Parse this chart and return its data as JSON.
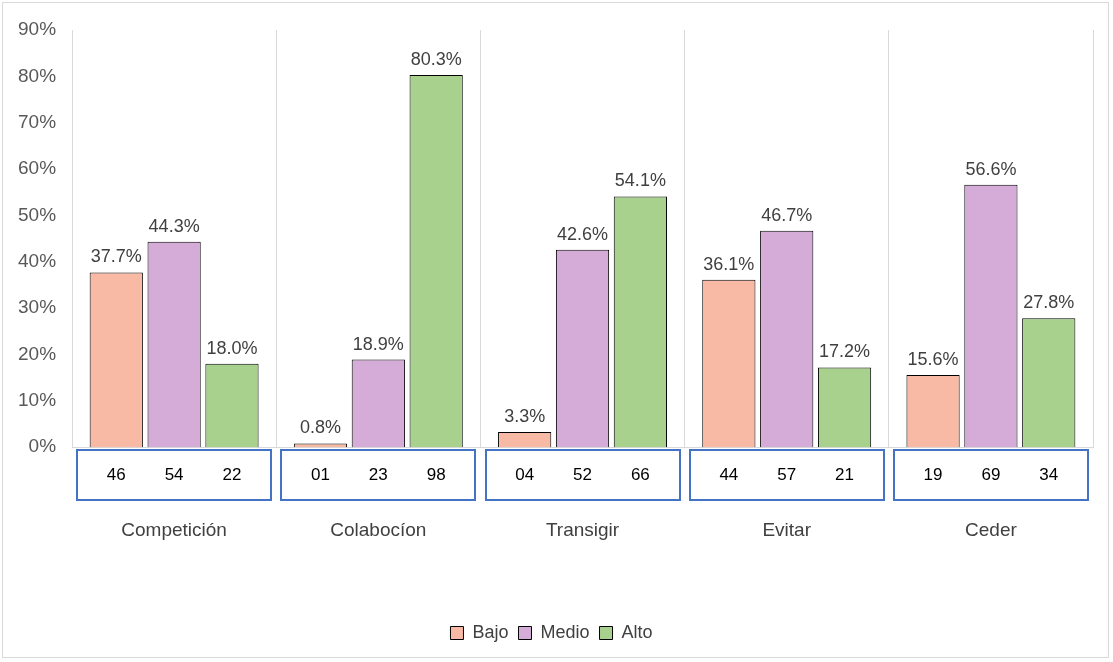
{
  "chart_data": {
    "type": "bar",
    "categories": [
      "Competición",
      "Colabocíon",
      "Transigir",
      "Evitar",
      "Ceder"
    ],
    "series": [
      {
        "name": "Bajo",
        "color": "#f8b9a5",
        "values": [
          37.7,
          0.8,
          3.3,
          36.1,
          15.6
        ],
        "value_labels": [
          "37.7%",
          "0.8%",
          "3.3%",
          "36.1%",
          "15.6%"
        ]
      },
      {
        "name": "Medio",
        "color": "#d5acd8",
        "values": [
          44.3,
          18.9,
          42.6,
          46.7,
          56.6
        ],
        "value_labels": [
          "44.3%",
          "18.9%",
          "42.6%",
          "46.7%",
          "56.6%"
        ]
      },
      {
        "name": "Alto",
        "color": "#a9d18e",
        "values": [
          18.0,
          80.3,
          54.1,
          17.2,
          27.8
        ],
        "value_labels": [
          "18.0%",
          "80.3%",
          "54.1%",
          "17.2%",
          "27.8%"
        ]
      }
    ],
    "ylim": [
      0,
      90
    ],
    "yticks": [
      {
        "value": 0,
        "label": "0%"
      },
      {
        "value": 10,
        "label": "10%"
      },
      {
        "value": 20,
        "label": "20%"
      },
      {
        "value": 30,
        "label": "30%"
      },
      {
        "value": 40,
        "label": "40%"
      },
      {
        "value": 50,
        "label": "50%"
      },
      {
        "value": 60,
        "label": "60%"
      },
      {
        "value": 70,
        "label": "70%"
      },
      {
        "value": 80,
        "label": "80%"
      },
      {
        "value": 90,
        "label": "90%"
      }
    ],
    "grid": "x",
    "legend": "bottom",
    "annotations": [
      "46",
      "54",
      "22",
      "01",
      "23",
      "98",
      "04",
      "52",
      "66",
      "44",
      "57",
      "21",
      "19",
      "69",
      "34"
    ]
  }
}
